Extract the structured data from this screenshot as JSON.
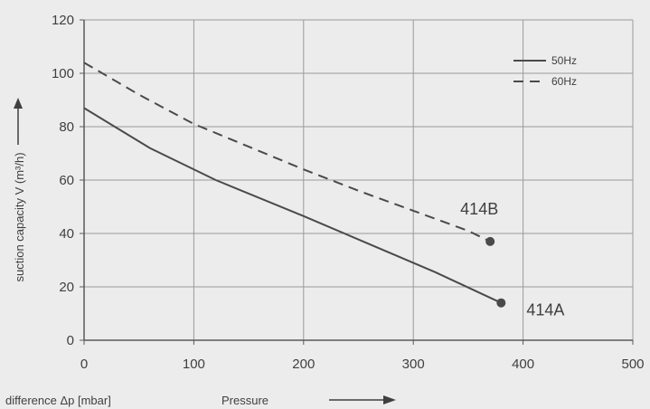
{
  "chart_data": {
    "type": "line",
    "title": "",
    "ylabel": "suction capacity V (m³/h)",
    "xlabel": "difference Δp [mbar]",
    "xlabel_prefix": "Pressure",
    "xlim": [
      0,
      500
    ],
    "ylim": [
      0,
      120
    ],
    "x_ticks": [
      0,
      100,
      200,
      300,
      400,
      500
    ],
    "y_ticks": [
      0,
      20,
      40,
      60,
      80,
      100,
      120
    ],
    "grid": true,
    "legend_position": "top-right",
    "series": [
      {
        "name": "50Hz",
        "line_style": "solid",
        "color": "#4a4a4a",
        "end_label": "414A",
        "end_marker": true,
        "x": [
          0,
          60,
          120,
          200,
          260,
          320,
          380
        ],
        "y": [
          87,
          72,
          60,
          46.5,
          36,
          25.5,
          14
        ]
      },
      {
        "name": "60Hz",
        "line_style": "dashed",
        "color": "#4a4a4a",
        "end_label": "414B",
        "end_marker": true,
        "x": [
          0,
          50,
          100,
          150,
          200,
          250,
          300,
          350,
          370
        ],
        "y": [
          104,
          92,
          81,
          72.5,
          64,
          56,
          48.5,
          41,
          37
        ]
      }
    ],
    "colors": {
      "background": "#ececec",
      "grid": "#9a9a9a",
      "axis": "#5a5a5a",
      "text": "#3f3f3f"
    }
  }
}
